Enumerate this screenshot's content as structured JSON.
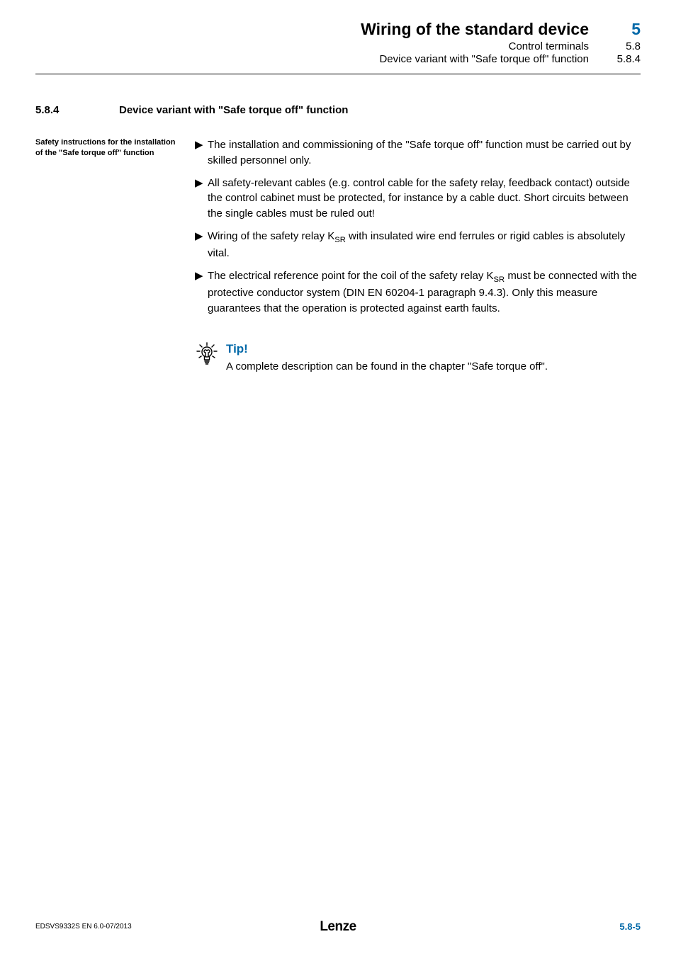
{
  "colors": {
    "accent": "#0068a8",
    "text": "#000000",
    "background": "#ffffff"
  },
  "typography": {
    "body_fontsize": 15,
    "sidelabel_fontsize": 11,
    "heading_fontsize": 15,
    "header_title_fontsize": 23,
    "footer_left_fontsize": 10,
    "footer_right_fontsize": 13
  },
  "header": {
    "title": "Wiring of the standard device",
    "sub1": "Control terminals",
    "sub2": "Device variant with \"Safe torque off\" function",
    "num_main": "5",
    "num_sub1": "5.8",
    "num_sub2": "5.8.4"
  },
  "section": {
    "number": "5.8.4",
    "title": "Device variant with \"Safe torque off\" function"
  },
  "side_label": "Safety instructions for the installation of the \"Safe torque off\" function",
  "bullets": {
    "marker": "▶",
    "items": [
      "The installation and commissioning of the \"Safe torque off\" function must be carried out by skilled personnel only.",
      "All safety-relevant cables (e.g. control cable for the safety relay, feedback contact) outside the control cabinet must be protected, for instance by a cable duct. Short circuits between the single cables must be ruled out!",
      "Wiring of the safety relay K<sub>SR</sub> with insulated wire end ferrules or rigid cables is absolutely vital.",
      "The electrical reference point for the coil of the safety relay K<sub>SR</sub> must be connected with the protective conductor system (DIN EN 60204-1 paragraph 9.4.3). Only this measure guarantees that the operation is protected against earth faults."
    ]
  },
  "tip": {
    "label": "Tip!",
    "text": "A complete description can be found in the chapter \"Safe torque off\"."
  },
  "footer": {
    "left": "EDSVS9332S  EN  6.0-07/2013",
    "center": "Lenze",
    "right": "5.8-5"
  }
}
